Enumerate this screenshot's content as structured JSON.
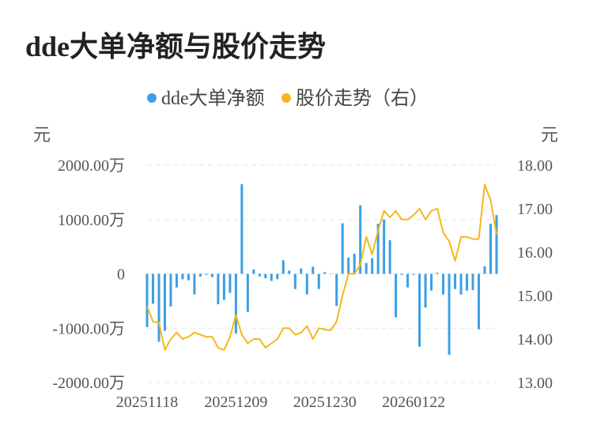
{
  "title": "dde大单净额与股价走势",
  "chart_data": {
    "type": "bar+line",
    "legend": [
      {
        "name": "dde大单净额",
        "color": "#3b9fe3"
      },
      {
        "name": "股价走势（右）",
        "color": "#f5b71b"
      }
    ],
    "left_unit": "元",
    "right_unit": "元",
    "left_ticks": [
      "2000.00万",
      "1000.00万",
      "0",
      "-1000.00万",
      "-2000.00万"
    ],
    "left_tick_values": [
      2000,
      1000,
      0,
      -1000,
      -2000
    ],
    "right_ticks": [
      "18.00",
      "17.00",
      "16.00",
      "15.00",
      "14.00",
      "13.00"
    ],
    "right_tick_values": [
      18,
      17,
      16,
      15,
      14,
      13
    ],
    "x_tick_labels": [
      "20251118",
      "20251209",
      "20251230",
      "20260122"
    ],
    "x_tick_indices": [
      0,
      15,
      30,
      45
    ],
    "ylim_left": [
      -2000,
      2000
    ],
    "ylim_right": [
      13,
      18
    ],
    "bar_color": "#3b9fe3",
    "line_color": "#f5b71b",
    "series": [
      {
        "name": "dde大单净额",
        "axis": "left",
        "values": [
          -980,
          -550,
          -1250,
          -1050,
          -600,
          -250,
          -100,
          -120,
          -380,
          -50,
          -20,
          -60,
          -560,
          -480,
          -350,
          -1100,
          1650,
          -700,
          80,
          -50,
          -80,
          -130,
          -100,
          250,
          60,
          -280,
          100,
          -380,
          130,
          -280,
          30,
          0,
          -590,
          930,
          300,
          370,
          1260,
          200,
          290,
          920,
          1000,
          620,
          -800,
          -20,
          -250,
          -20,
          -1340,
          -620,
          -310,
          20,
          -380,
          -1490,
          -280,
          -380,
          -310,
          -300,
          -1020,
          140,
          920,
          1080
        ]
      },
      {
        "name": "股价走势（右）",
        "axis": "right",
        "values": [
          14.75,
          14.4,
          14.38,
          13.75,
          14.0,
          14.15,
          14.0,
          14.05,
          14.15,
          14.1,
          14.05,
          14.05,
          13.8,
          13.75,
          14.05,
          14.55,
          14.1,
          13.9,
          14.0,
          14.0,
          13.8,
          13.9,
          14.0,
          14.25,
          14.25,
          14.1,
          14.15,
          14.3,
          14.0,
          14.25,
          14.22,
          14.2,
          14.4,
          15.0,
          15.5,
          15.5,
          15.7,
          16.35,
          15.95,
          16.5,
          16.95,
          16.8,
          16.95,
          16.75,
          16.75,
          16.85,
          17.0,
          16.75,
          16.95,
          17.0,
          16.45,
          16.25,
          15.8,
          16.35,
          16.35,
          16.3,
          16.3,
          17.55,
          17.2,
          16.4
        ]
      }
    ]
  }
}
